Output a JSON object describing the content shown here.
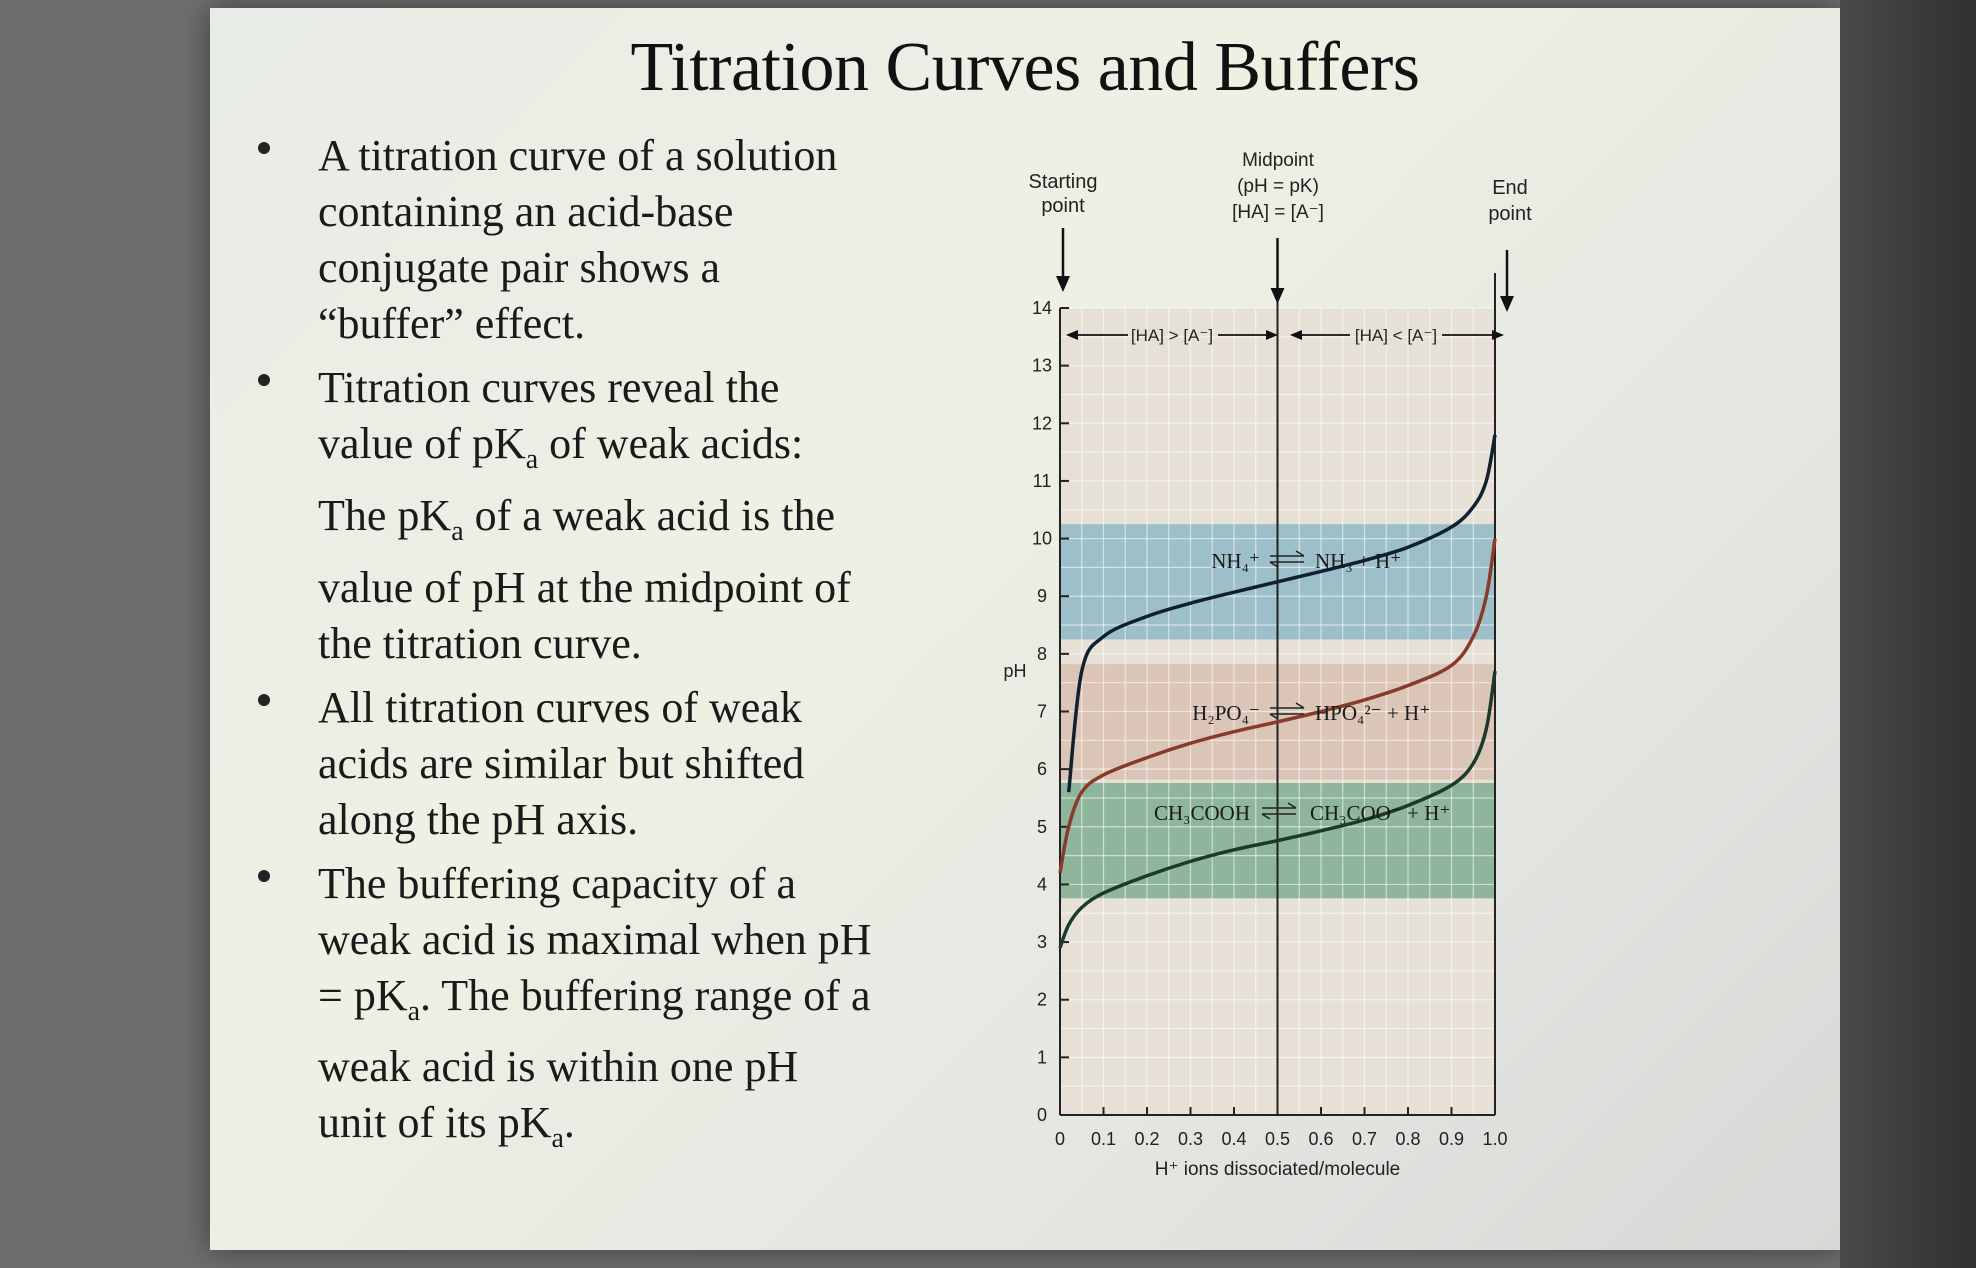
{
  "slide": {
    "title": "Titration Curves and Buffers",
    "bullets": [
      {
        "lines": [
          "A titration curve of a solution",
          "containing an acid-base",
          "conjugate pair shows a",
          "“buffer” effect."
        ]
      },
      {
        "lines": [
          "Titration curves reveal the",
          "value of pK_a of weak acids:",
          "The pK_a of a weak acid is the",
          "value of pH at the midpoint of",
          "the titration curve."
        ]
      },
      {
        "lines": [
          "All titration curves of weak",
          "acids are similar but shifted",
          "along the pH axis."
        ]
      },
      {
        "lines": [
          "The buffering capacity of a",
          "weak acid is maximal when pH",
          "= pK_a. The buffering range of a",
          "weak acid is within one pH",
          "unit of its pK_a."
        ]
      }
    ]
  },
  "figure": {
    "annotations": {
      "starting_point": [
        "Starting",
        "point"
      ],
      "midpoint": [
        "Midpoint",
        "(pH = pK)",
        "[HA] = [A⁻]"
      ],
      "end_point": [
        "End",
        "point"
      ],
      "left_region": "[HA] > [A⁻]",
      "right_region": "[HA] < [A⁻]"
    },
    "reactions": {
      "ammonium": {
        "left": "NH₄⁺",
        "right": "NH₃ + H⁺"
      },
      "phosphate": {
        "left": "H₂PO₄⁻",
        "right": "HPO₄²⁻ + H⁺"
      },
      "acetate": {
        "left": "CH₃COOH",
        "right": "CH₃COO⁻ + H⁺"
      }
    }
  },
  "chart_data": {
    "type": "line",
    "xlabel": "H⁺ ions dissociated/molecule",
    "ylabel": "pH",
    "xlim": [
      0,
      1.0
    ],
    "ylim": [
      0,
      14
    ],
    "x_ticks": [
      "0",
      "0.1",
      "0.2",
      "0.3",
      "0.4",
      "0.5",
      "0.6",
      "0.7",
      "0.8",
      "0.9",
      "1.0"
    ],
    "y_ticks": [
      "0",
      "1",
      "2",
      "3",
      "4",
      "5",
      "6",
      "7",
      "8",
      "9",
      "10",
      "11",
      "12",
      "13",
      "14"
    ],
    "grid": true,
    "buffer_bands": [
      {
        "pka": 9.25,
        "range": [
          8.25,
          10.25
        ],
        "color": "#8fb8c8"
      },
      {
        "pka": 6.82,
        "range": [
          5.82,
          7.82
        ],
        "color": "#d8c0b0"
      },
      {
        "pka": 4.76,
        "range": [
          3.76,
          5.76
        ],
        "color": "#7fae92"
      }
    ],
    "series": [
      {
        "key": "ammonium",
        "color": "#102030",
        "pka": 9.25,
        "x": [
          0.02,
          0.05,
          0.1,
          0.2,
          0.3,
          0.4,
          0.5,
          0.6,
          0.7,
          0.8,
          0.9,
          0.95,
          0.98,
          1.0
        ],
        "y": [
          5.6,
          7.7,
          8.3,
          8.65,
          8.88,
          9.07,
          9.25,
          9.43,
          9.62,
          9.85,
          10.2,
          10.55,
          11.0,
          11.8
        ]
      },
      {
        "key": "phosphate",
        "color": "#8a3a2a",
        "pka": 6.82,
        "x": [
          0.0,
          0.02,
          0.05,
          0.1,
          0.2,
          0.3,
          0.4,
          0.5,
          0.6,
          0.7,
          0.8,
          0.9,
          0.95,
          0.98,
          1.0
        ],
        "y": [
          4.2,
          5.0,
          5.6,
          5.9,
          6.2,
          6.45,
          6.65,
          6.82,
          7.0,
          7.2,
          7.45,
          7.8,
          8.3,
          9.0,
          10.0
        ]
      },
      {
        "key": "acetate",
        "color": "#1a3a2a",
        "pka": 4.76,
        "x": [
          0.0,
          0.02,
          0.05,
          0.1,
          0.2,
          0.3,
          0.4,
          0.5,
          0.6,
          0.7,
          0.8,
          0.9,
          0.95,
          0.98,
          1.0
        ],
        "y": [
          2.9,
          3.3,
          3.6,
          3.85,
          4.15,
          4.4,
          4.6,
          4.76,
          4.93,
          5.12,
          5.37,
          5.72,
          6.1,
          6.7,
          7.7
        ]
      }
    ]
  }
}
